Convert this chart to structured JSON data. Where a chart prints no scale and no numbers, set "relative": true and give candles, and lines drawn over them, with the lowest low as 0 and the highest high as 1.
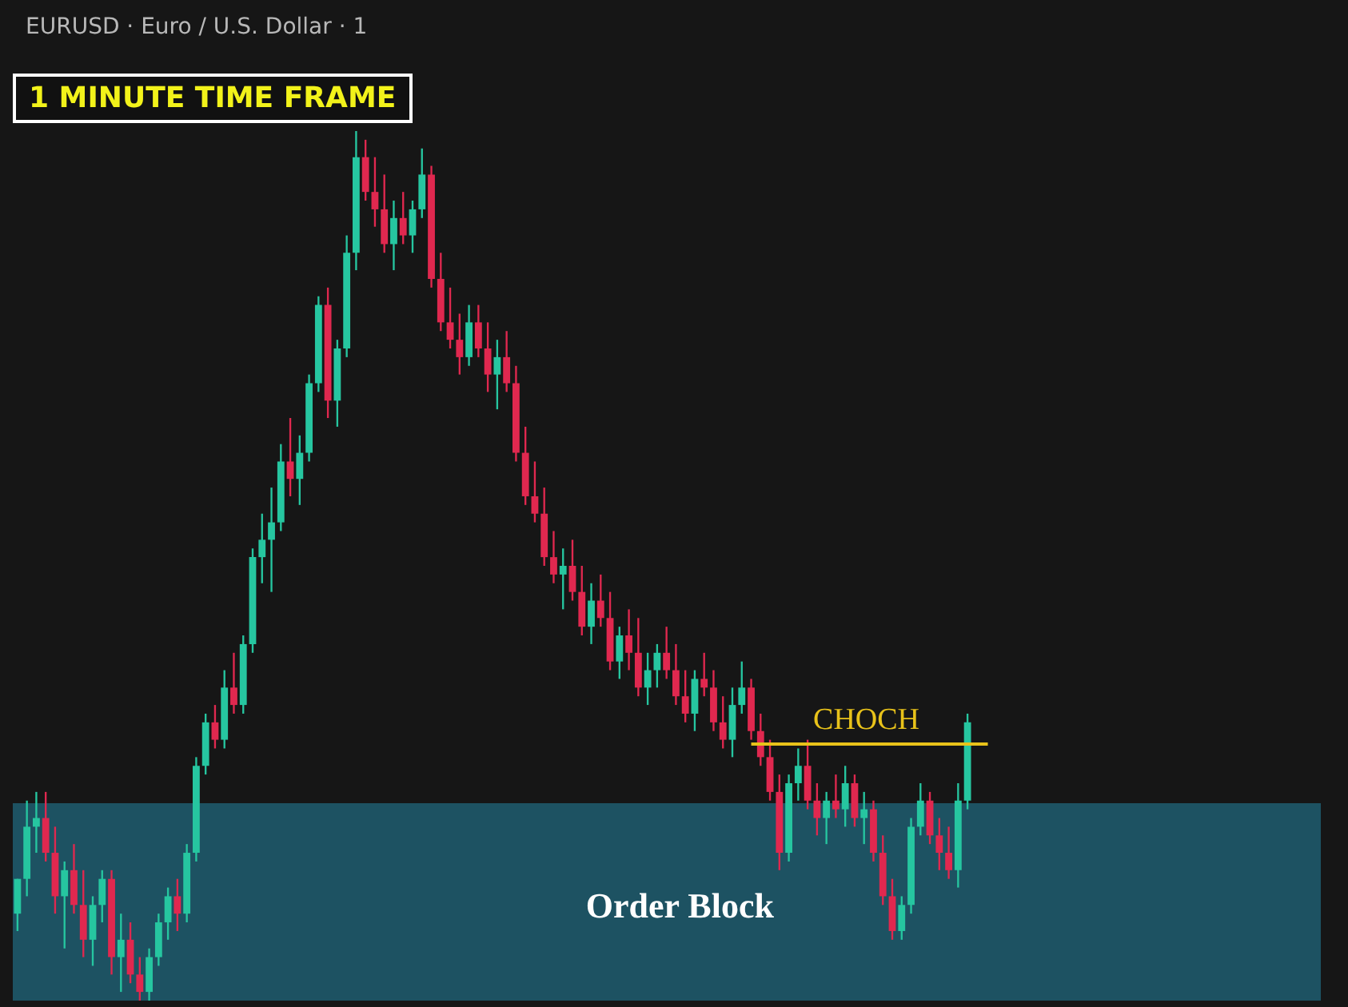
{
  "chart_data": {
    "type": "candlestick",
    "title": "EURUSD · Euro / U.S. Dollar · 1",
    "relative": true,
    "annotations": [
      "1 MINUTE TIME FRAME"
    ],
    "categories": [
      null,
      null,
      null,
      null,
      null,
      null,
      null,
      null,
      null,
      null,
      null,
      null,
      null,
      null,
      null,
      null,
      null,
      null,
      null,
      null,
      null,
      null,
      null,
      null,
      null,
      null,
      null,
      null,
      null,
      null,
      null,
      null,
      null,
      null,
      null,
      null,
      null,
      null,
      null,
      null,
      null,
      null,
      null,
      null,
      null,
      null,
      null,
      null,
      null,
      null,
      null,
      null,
      null,
      null,
      null,
      null,
      null,
      null,
      null,
      null,
      null,
      null,
      null,
      null,
      null,
      null,
      null,
      null,
      null,
      null,
      null,
      null,
      null,
      null,
      null,
      null,
      null,
      null,
      null,
      null,
      null,
      null,
      null,
      null,
      null,
      null,
      null,
      null,
      null,
      null,
      null,
      null,
      null,
      null,
      null,
      null,
      null,
      null,
      null,
      null,
      null,
      null
    ],
    "ohlc": [
      [
        0.1,
        0.14,
        0.08,
        0.14
      ],
      [
        0.14,
        0.23,
        0.12,
        0.2
      ],
      [
        0.2,
        0.24,
        0.17,
        0.21
      ],
      [
        0.21,
        0.24,
        0.16,
        0.17
      ],
      [
        0.17,
        0.2,
        0.1,
        0.12
      ],
      [
        0.12,
        0.16,
        0.06,
        0.15
      ],
      [
        0.15,
        0.18,
        0.1,
        0.11
      ],
      [
        0.11,
        0.15,
        0.05,
        0.07
      ],
      [
        0.07,
        0.12,
        0.04,
        0.11
      ],
      [
        0.11,
        0.15,
        0.09,
        0.14
      ],
      [
        0.14,
        0.15,
        0.03,
        0.05
      ],
      [
        0.05,
        0.1,
        0.01,
        0.07
      ],
      [
        0.07,
        0.09,
        0.02,
        0.03
      ],
      [
        0.03,
        0.05,
        0.0,
        0.01
      ],
      [
        0.01,
        0.06,
        0.0,
        0.05
      ],
      [
        0.05,
        0.1,
        0.04,
        0.09
      ],
      [
        0.09,
        0.13,
        0.07,
        0.12
      ],
      [
        0.12,
        0.14,
        0.08,
        0.1
      ],
      [
        0.1,
        0.18,
        0.09,
        0.17
      ],
      [
        0.17,
        0.28,
        0.16,
        0.27
      ],
      [
        0.27,
        0.33,
        0.26,
        0.32
      ],
      [
        0.32,
        0.34,
        0.29,
        0.3
      ],
      [
        0.3,
        0.38,
        0.29,
        0.36
      ],
      [
        0.36,
        0.4,
        0.33,
        0.34
      ],
      [
        0.34,
        0.42,
        0.33,
        0.41
      ],
      [
        0.41,
        0.52,
        0.4,
        0.51
      ],
      [
        0.51,
        0.56,
        0.48,
        0.53
      ],
      [
        0.53,
        0.59,
        0.47,
        0.55
      ],
      [
        0.55,
        0.64,
        0.54,
        0.62
      ],
      [
        0.62,
        0.67,
        0.58,
        0.6
      ],
      [
        0.6,
        0.65,
        0.57,
        0.63
      ],
      [
        0.63,
        0.72,
        0.62,
        0.71
      ],
      [
        0.71,
        0.81,
        0.7,
        0.8
      ],
      [
        0.8,
        0.82,
        0.67,
        0.69
      ],
      [
        0.69,
        0.76,
        0.66,
        0.75
      ],
      [
        0.75,
        0.88,
        0.74,
        0.86
      ],
      [
        0.86,
        1.0,
        0.84,
        0.97
      ],
      [
        0.97,
        0.99,
        0.92,
        0.93
      ],
      [
        0.93,
        0.97,
        0.89,
        0.91
      ],
      [
        0.91,
        0.95,
        0.86,
        0.87
      ],
      [
        0.87,
        0.92,
        0.84,
        0.9
      ],
      [
        0.9,
        0.93,
        0.87,
        0.88
      ],
      [
        0.88,
        0.92,
        0.86,
        0.91
      ],
      [
        0.91,
        0.98,
        0.9,
        0.95
      ],
      [
        0.95,
        0.96,
        0.82,
        0.83
      ],
      [
        0.83,
        0.86,
        0.77,
        0.78
      ],
      [
        0.78,
        0.82,
        0.75,
        0.76
      ],
      [
        0.76,
        0.79,
        0.72,
        0.74
      ],
      [
        0.74,
        0.8,
        0.73,
        0.78
      ],
      [
        0.78,
        0.8,
        0.74,
        0.75
      ],
      [
        0.75,
        0.78,
        0.7,
        0.72
      ],
      [
        0.72,
        0.76,
        0.68,
        0.74
      ],
      [
        0.74,
        0.77,
        0.7,
        0.71
      ],
      [
        0.71,
        0.73,
        0.62,
        0.63
      ],
      [
        0.63,
        0.66,
        0.57,
        0.58
      ],
      [
        0.58,
        0.62,
        0.55,
        0.56
      ],
      [
        0.56,
        0.59,
        0.5,
        0.51
      ],
      [
        0.51,
        0.54,
        0.48,
        0.49
      ],
      [
        0.49,
        0.52,
        0.45,
        0.5
      ],
      [
        0.5,
        0.53,
        0.46,
        0.47
      ],
      [
        0.47,
        0.5,
        0.42,
        0.43
      ],
      [
        0.43,
        0.48,
        0.41,
        0.46
      ],
      [
        0.46,
        0.49,
        0.43,
        0.44
      ],
      [
        0.44,
        0.47,
        0.38,
        0.39
      ],
      [
        0.39,
        0.43,
        0.37,
        0.42
      ],
      [
        0.42,
        0.45,
        0.38,
        0.4
      ],
      [
        0.4,
        0.44,
        0.35,
        0.36
      ],
      [
        0.36,
        0.4,
        0.34,
        0.38
      ],
      [
        0.38,
        0.41,
        0.36,
        0.4
      ],
      [
        0.4,
        0.43,
        0.37,
        0.38
      ],
      [
        0.38,
        0.41,
        0.34,
        0.35
      ],
      [
        0.35,
        0.38,
        0.32,
        0.33
      ],
      [
        0.33,
        0.38,
        0.31,
        0.37
      ],
      [
        0.37,
        0.4,
        0.35,
        0.36
      ],
      [
        0.36,
        0.38,
        0.31,
        0.32
      ],
      [
        0.32,
        0.35,
        0.29,
        0.3
      ],
      [
        0.3,
        0.36,
        0.28,
        0.34
      ],
      [
        0.34,
        0.39,
        0.33,
        0.36
      ],
      [
        0.36,
        0.37,
        0.3,
        0.31
      ],
      [
        0.31,
        0.33,
        0.27,
        0.28
      ],
      [
        0.28,
        0.3,
        0.23,
        0.24
      ],
      [
        0.24,
        0.26,
        0.15,
        0.17
      ],
      [
        0.17,
        0.26,
        0.16,
        0.25
      ],
      [
        0.25,
        0.29,
        0.23,
        0.27
      ],
      [
        0.27,
        0.3,
        0.22,
        0.23
      ],
      [
        0.23,
        0.25,
        0.19,
        0.21
      ],
      [
        0.21,
        0.24,
        0.18,
        0.23
      ],
      [
        0.23,
        0.26,
        0.21,
        0.22
      ],
      [
        0.22,
        0.27,
        0.2,
        0.25
      ],
      [
        0.25,
        0.26,
        0.2,
        0.21
      ],
      [
        0.21,
        0.24,
        0.18,
        0.22
      ],
      [
        0.22,
        0.23,
        0.16,
        0.17
      ],
      [
        0.17,
        0.19,
        0.11,
        0.12
      ],
      [
        0.12,
        0.14,
        0.07,
        0.08
      ],
      [
        0.08,
        0.12,
        0.07,
        0.11
      ],
      [
        0.11,
        0.21,
        0.1,
        0.2
      ],
      [
        0.2,
        0.25,
        0.19,
        0.23
      ],
      [
        0.23,
        0.24,
        0.18,
        0.19
      ],
      [
        0.19,
        0.21,
        0.15,
        0.17
      ],
      [
        0.17,
        0.2,
        0.14,
        0.15
      ],
      [
        0.15,
        0.25,
        0.13,
        0.23
      ],
      [
        0.23,
        0.33,
        0.22,
        0.32
      ]
    ],
    "ref_lines": [
      {
        "axis": "y",
        "value": 0.295,
        "label": "CHOCH",
        "color": "#e8c21a"
      }
    ],
    "bands": [
      {
        "axis": "y",
        "from": 0,
        "to": 0.227,
        "label": "Order Block",
        "color": "#1d5262"
      }
    ]
  }
}
